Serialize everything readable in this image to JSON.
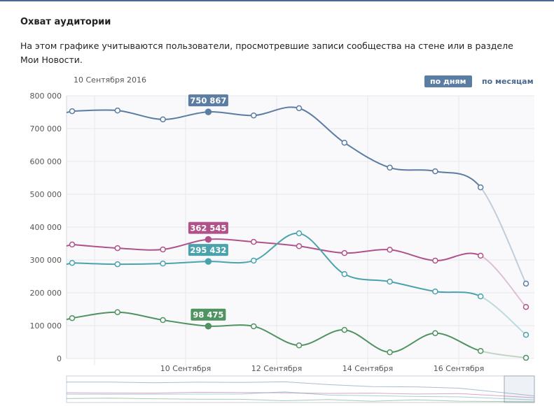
{
  "header": {
    "title": "Охват аудитории",
    "description": "На этом графике учитываются пользователи, просмотревшие записи сообщества на стене или в разделе Мои Новости.",
    "date": "10 Сентября 2016",
    "btn_days": "по дням",
    "btn_months": "по месяцам"
  },
  "chart_data": {
    "type": "line",
    "ylim": [
      0,
      800000
    ],
    "yticks": [
      "0",
      "100 000",
      "200 000",
      "300 000",
      "400 000",
      "500 000",
      "600 000",
      "700 000",
      "800 000"
    ],
    "xtick_labels": [
      "10 Сентября",
      "12 Сентября",
      "14 Сентября",
      "16 Сентября"
    ],
    "highlight_index": 3,
    "series": [
      {
        "name": "blue",
        "color": "#5b7ca3",
        "values": [
          753000,
          755000,
          728000,
          750867,
          740000,
          762000,
          657000,
          581000,
          570000,
          521000,
          228000
        ],
        "label": "750 867"
      },
      {
        "name": "pink",
        "color": "#b0528a",
        "values": [
          347000,
          336000,
          332000,
          362545,
          355000,
          342000,
          321000,
          331000,
          298000,
          313000,
          157000
        ],
        "label": "362 545"
      },
      {
        "name": "teal",
        "color": "#4aa3ac",
        "values": [
          291000,
          287000,
          289000,
          295432,
          298000,
          381000,
          257000,
          234000,
          204000,
          189000,
          72000
        ],
        "label": "295 432"
      },
      {
        "name": "green",
        "color": "#4f9360",
        "values": [
          123000,
          141000,
          117000,
          98475,
          98000,
          40000,
          87000,
          19000,
          77000,
          23000,
          2000
        ],
        "label": "98 475"
      }
    ]
  }
}
